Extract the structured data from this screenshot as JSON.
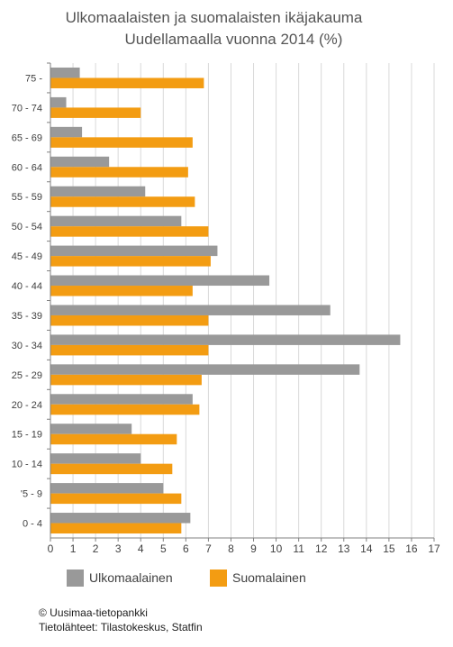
{
  "chart_data": {
    "type": "bar",
    "orientation": "horizontal",
    "title": "Ulkomaalaisten ja suomalaisten ikäjakauma",
    "subtitle": "Uudellamaalla vuonna 2014 (%)",
    "categories": [
      "75 -",
      "70 - 74",
      "65 - 69",
      "60 - 64",
      "55 - 59",
      "50 - 54",
      "45 - 49",
      "40 - 44",
      "35 - 39",
      "30 - 34",
      "25 - 29",
      "20 - 24",
      "15 - 19",
      "10 - 14",
      "'5 - 9",
      "0 - 4"
    ],
    "series": [
      {
        "name": "Ulkomaalainen",
        "color": "#999999",
        "values": [
          1.3,
          0.7,
          1.4,
          2.6,
          4.2,
          5.8,
          7.4,
          9.7,
          12.4,
          15.5,
          13.7,
          6.3,
          3.6,
          4.0,
          5.0,
          6.2
        ]
      },
      {
        "name": "Suomalainen",
        "color": "#f39c12",
        "values": [
          6.8,
          4.0,
          6.3,
          6.1,
          6.4,
          7.0,
          7.1,
          6.3,
          7.0,
          7.0,
          6.7,
          6.6,
          5.6,
          5.4,
          5.8,
          5.8
        ]
      }
    ],
    "xlim": [
      0,
      17
    ],
    "xticks": [
      "0",
      "1",
      "2",
      "3",
      "4",
      "5",
      "6",
      "7",
      "8",
      "9",
      "10",
      "11",
      "12",
      "13",
      "14",
      "15",
      "16",
      "17"
    ],
    "grid": true,
    "legend": "bottom"
  },
  "footer": {
    "copyright": "© Uusimaa-tietopankki",
    "source": "Tietolähteet:  Tilastokeskus, Statfin"
  }
}
